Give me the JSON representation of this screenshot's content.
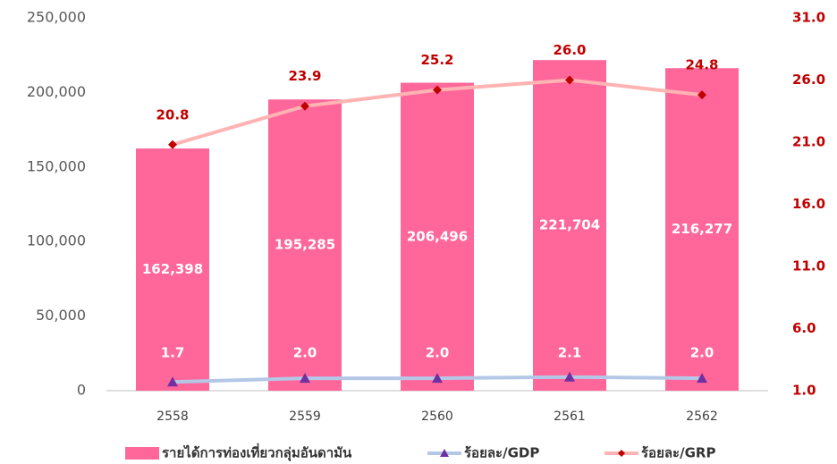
{
  "chart_data": {
    "type": "combo",
    "categories": [
      "2558",
      "2559",
      "2560",
      "2561",
      "2562"
    ],
    "series": [
      {
        "name": "รายได้การท่องเที่ยวกลุ่มอันดามัน",
        "type": "bar",
        "color": "#ff6699",
        "axis": "y",
        "values": [
          162398,
          195285,
          206496,
          221704,
          216277
        ],
        "value_labels": [
          "162,398",
          "195,285",
          "206,496",
          "221,704",
          "216,277"
        ]
      },
      {
        "name": "ร้อยละ/GDP",
        "type": "line",
        "color": "#b4c7e7",
        "marker": "triangle",
        "marker_color": "#7030a0",
        "axis": "y2",
        "values": [
          1.7,
          2.0,
          2.0,
          2.1,
          2.0
        ],
        "value_labels": [
          "1.7",
          "2.0",
          "2.0",
          "2.1",
          "2.0"
        ]
      },
      {
        "name": "ร้อยละ/GRP",
        "type": "line",
        "color": "#ffb3b3",
        "marker": "diamond",
        "marker_color": "#c00000",
        "axis": "y2",
        "values": [
          20.8,
          23.9,
          25.2,
          26.0,
          24.8
        ],
        "value_labels": [
          "20.8",
          "23.9",
          "25.2",
          "26.0",
          "24.8"
        ]
      }
    ],
    "ylim": [
      0,
      250000
    ],
    "yticks": [
      0,
      {
        "value": 50000,
        "label": "50,000"
      },
      {
        "value": 100000,
        "label": "100,000"
      },
      {
        "value": 150000,
        "label": "150,000"
      },
      {
        "value": 200000,
        "label": "200,000"
      },
      {
        "value": 250000,
        "label": "250,000"
      }
    ],
    "y2lim": [
      1.0,
      31.0
    ],
    "y2ticks": [
      {
        "value": 1,
        "label": "1.0"
      },
      {
        "value": 6,
        "label": "6.0"
      },
      {
        "value": 11,
        "label": "11.0"
      },
      {
        "value": 16,
        "label": "16.0"
      },
      {
        "value": 21,
        "label": "21.0"
      },
      {
        "value": 26,
        "label": "26.0"
      },
      {
        "value": 31,
        "label": "31.0"
      }
    ],
    "grid": false,
    "legend": "bottom"
  }
}
